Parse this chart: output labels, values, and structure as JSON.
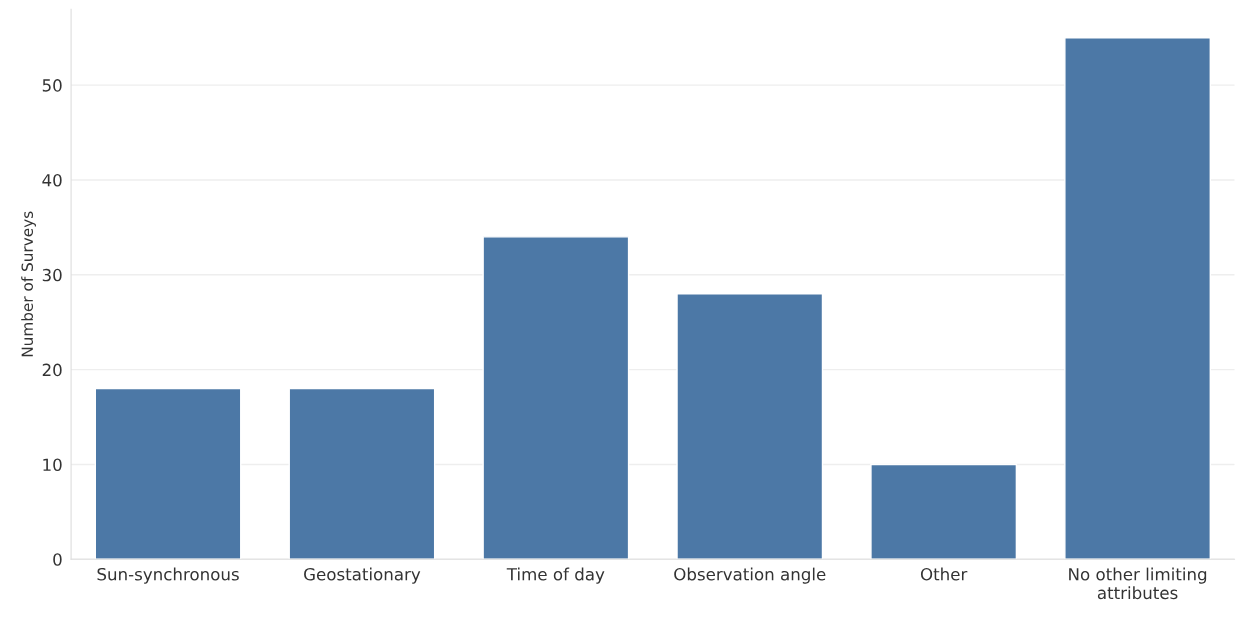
{
  "chart_data": {
    "type": "bar",
    "ylabel": "Number of Surveys",
    "categories": [
      "Sun-synchronous",
      "Geostationary",
      "Time of day",
      "Observation angle",
      "Other",
      "No other limiting\nattributes"
    ],
    "values": [
      18,
      18,
      34,
      28,
      10,
      55
    ],
    "color": "#4c78a6",
    "ylim": [
      0,
      58
    ],
    "yticks": [
      0,
      10,
      20,
      30,
      40,
      50
    ],
    "grid": "y",
    "legend": false
  }
}
